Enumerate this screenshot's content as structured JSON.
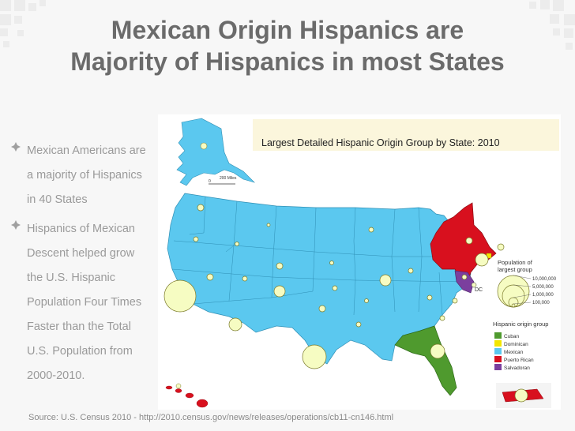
{
  "slide": {
    "title_line1": "Mexican Origin Hispanics are",
    "title_line2": "Majority of Hispanics in most States"
  },
  "bullets": [
    {
      "lines": [
        "Mexican Americans are",
        "a majority of Hispanics",
        "in 40 States"
      ]
    },
    {
      "lines": [
        "Hispanics of Mexican",
        "Descent helped grow",
        "the U.S. Hispanic",
        "Population Four Times",
        "Faster than the Total",
        "U.S. Population from",
        "2000-2010."
      ]
    }
  ],
  "map": {
    "title": "Largest Detailed Hispanic Origin Group by State: 2010",
    "scale_label_0": "0",
    "scale_label_1": "200 Miles",
    "dc_label": "DC",
    "population_legend": {
      "title_line1": "Population of",
      "title_line2": "largest group",
      "values": [
        "10,000,000",
        "5,000,000",
        "1,000,000",
        "100,000"
      ]
    },
    "origin_legend": {
      "title": "Hispanic origin group",
      "items": [
        {
          "label": "Cuban",
          "color": "#4f9a2e"
        },
        {
          "label": "Dominican",
          "color": "#f2e600"
        },
        {
          "label": "Mexican",
          "color": "#5bc8ef"
        },
        {
          "label": "Puerto Rican",
          "color": "#d8101e"
        },
        {
          "label": "Salvadoran",
          "color": "#7b3f9e"
        }
      ]
    }
  },
  "source": "Source: U.S. Census 2010 - http://2010.census.gov/news/releases/operations/cb11-cn146.html"
}
